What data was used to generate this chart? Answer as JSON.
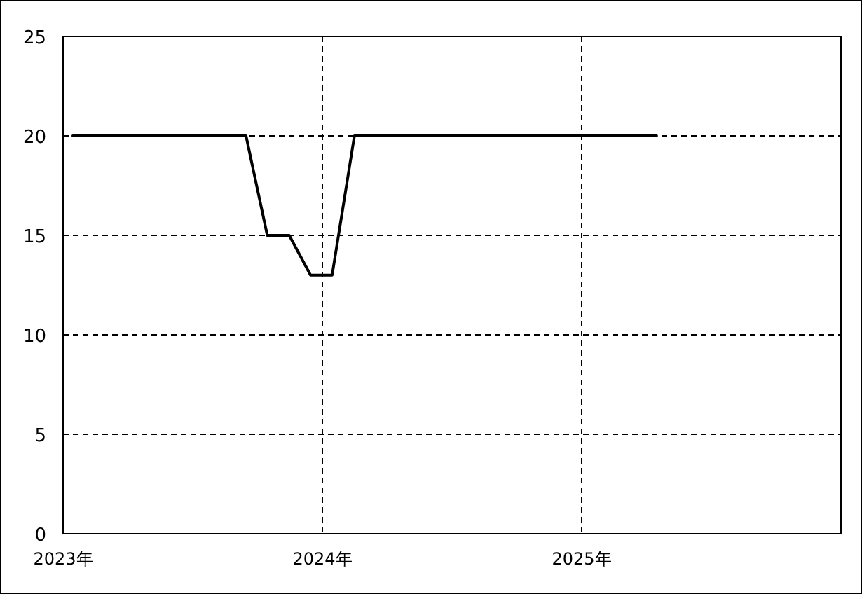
{
  "chart_data": {
    "type": "line",
    "x": [
      "2023-01-15",
      "2023-09-15",
      "2023-10-15",
      "2023-11-15",
      "2023-12-15",
      "2024-01-15",
      "2024-02-15",
      "2025-04-15"
    ],
    "series": [
      {
        "color": "#000000",
        "values": [
          20,
          20,
          15,
          15,
          13,
          13,
          20,
          20
        ]
      }
    ],
    "xlim": [
      "2023-01",
      "2026-01"
    ],
    "xticks": [
      {
        "value": "2023-01",
        "label": "2023年"
      },
      {
        "value": "2024-01",
        "label": "2024年"
      },
      {
        "value": "2025-01",
        "label": "2025年"
      }
    ],
    "ylim": [
      0,
      25
    ],
    "yticks": [
      0,
      5,
      10,
      15,
      20,
      25
    ],
    "grid": true,
    "marker": "none",
    "line_style": "solid"
  }
}
